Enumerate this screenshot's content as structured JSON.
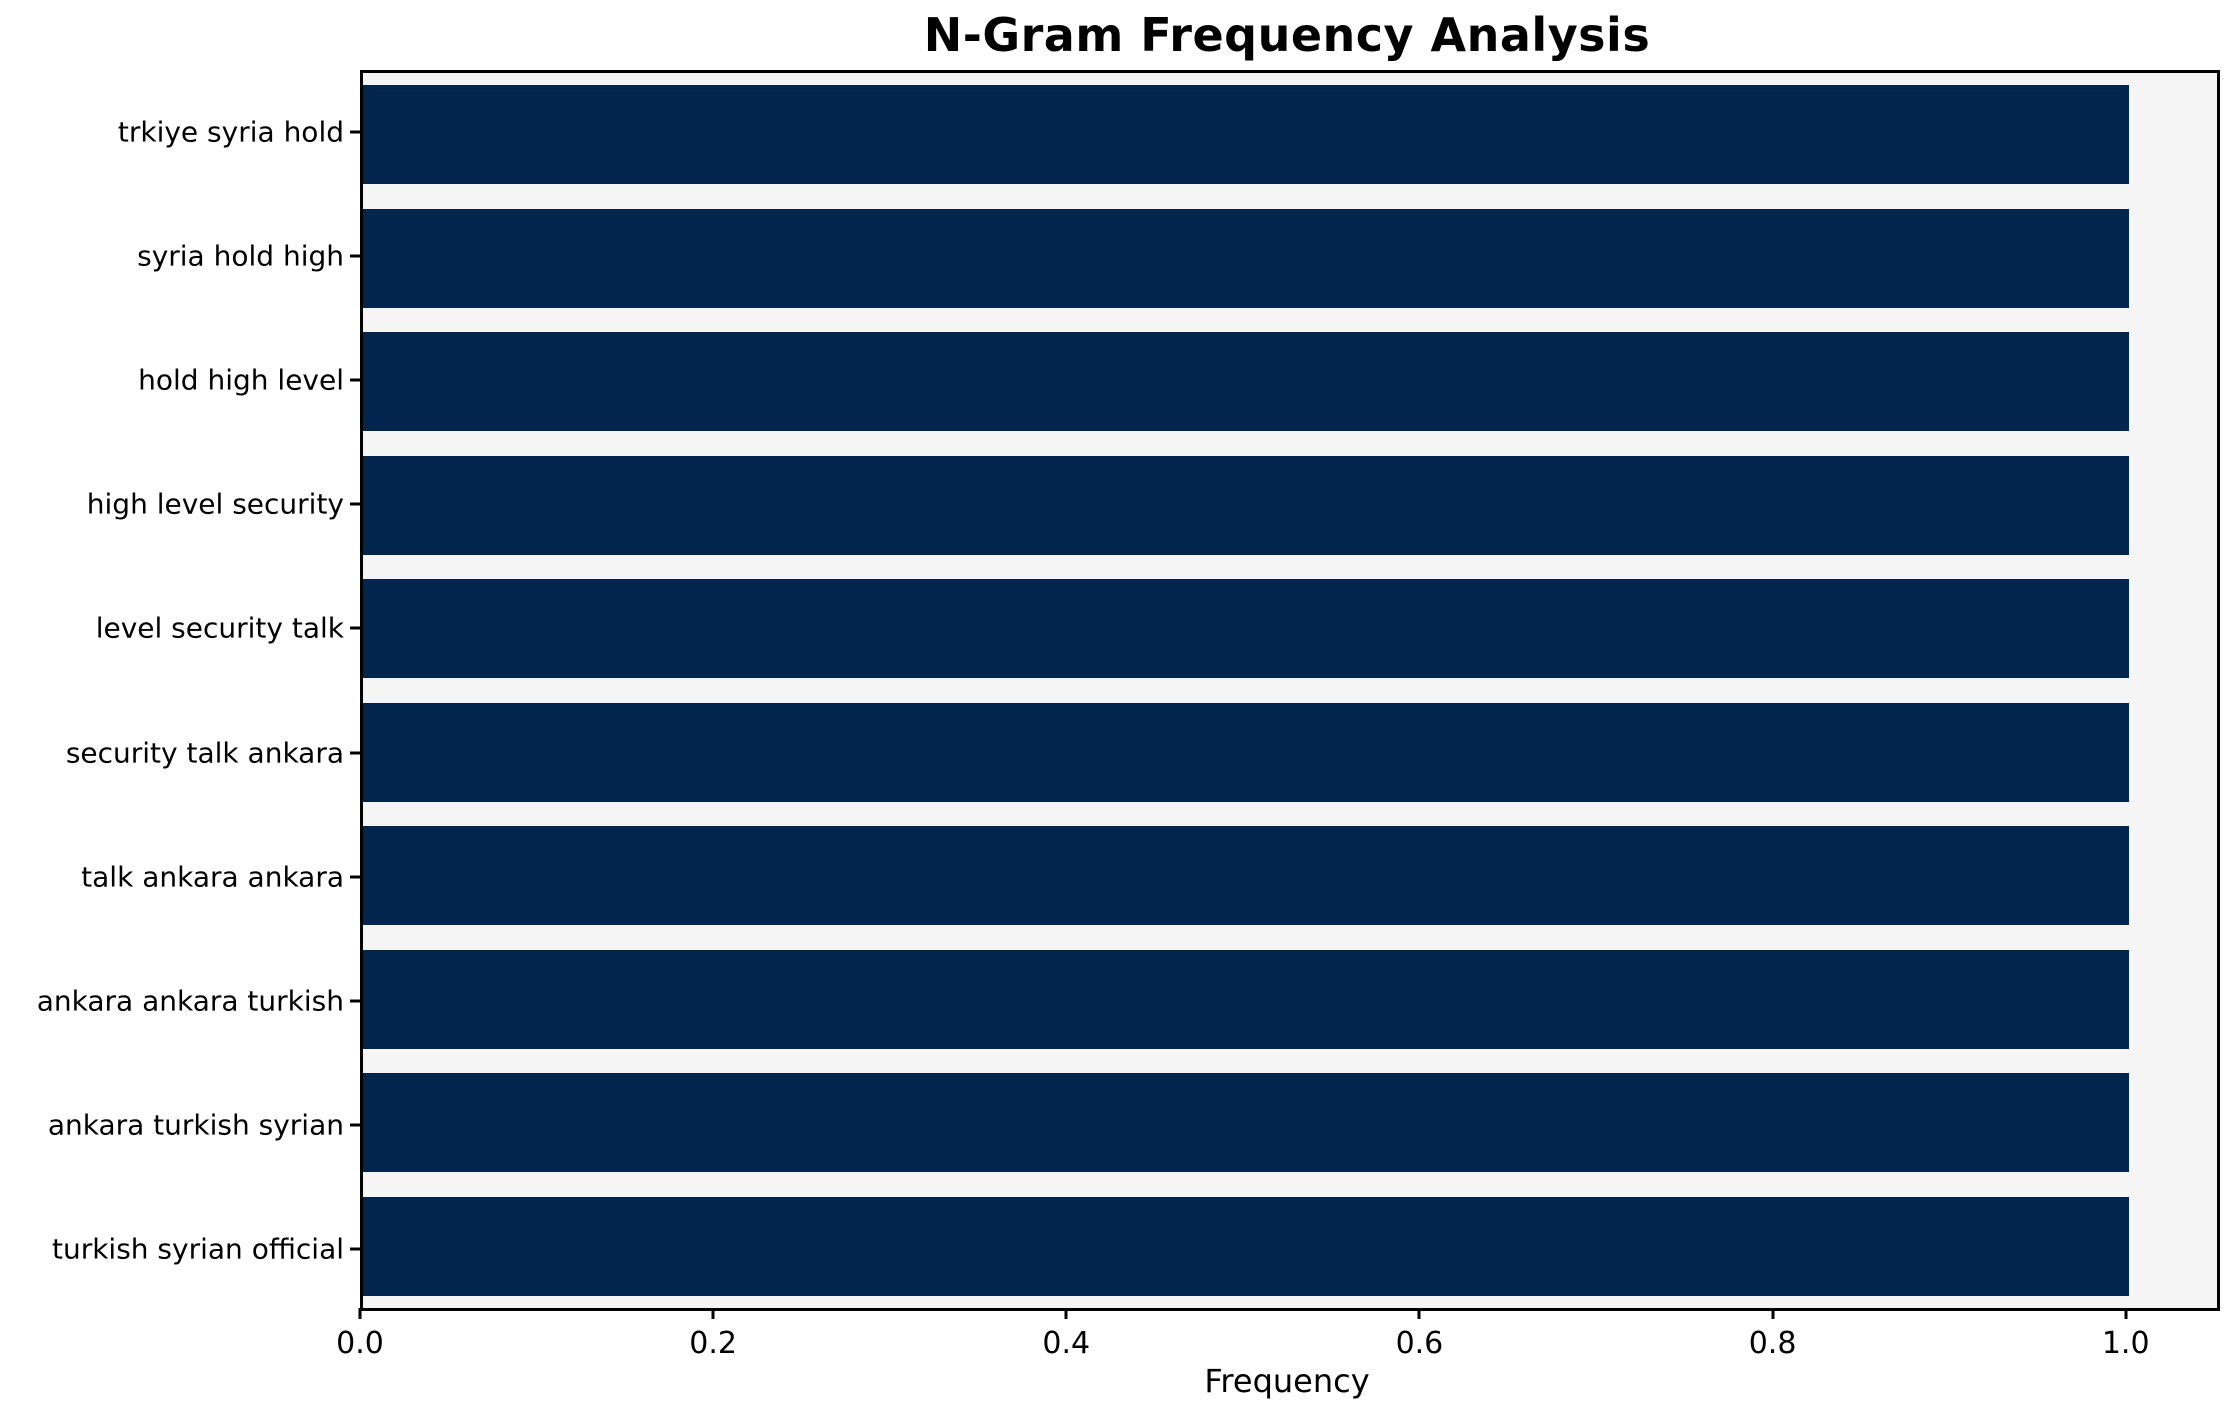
{
  "chart_data": {
    "type": "bar",
    "orientation": "horizontal",
    "title": "N-Gram Frequency Analysis",
    "xlabel": "Frequency",
    "ylabel": "",
    "categories": [
      "trkiye syria hold",
      "syria hold high",
      "hold high level",
      "high level security",
      "level security talk",
      "security talk ankara",
      "talk ankara ankara",
      "ankara ankara turkish",
      "ankara turkish syrian",
      "turkish syrian official"
    ],
    "values": [
      1.0,
      1.0,
      1.0,
      1.0,
      1.0,
      1.0,
      1.0,
      1.0,
      1.0,
      1.0
    ],
    "xlim": [
      0,
      1.05
    ],
    "xticks": [
      {
        "value": 0.0,
        "label": "0.0"
      },
      {
        "value": 0.2,
        "label": "0.2"
      },
      {
        "value": 0.4,
        "label": "0.4"
      },
      {
        "value": 0.6,
        "label": "0.6"
      },
      {
        "value": 0.8,
        "label": "0.8"
      },
      {
        "value": 1.0,
        "label": "1.0"
      }
    ],
    "grid": false,
    "legend": "none",
    "colors": {
      "bar": "#02254e",
      "plot_background": "#f5f5f5",
      "figure_background": "#ffffff",
      "spine": "#000000",
      "text": "#000000"
    }
  }
}
